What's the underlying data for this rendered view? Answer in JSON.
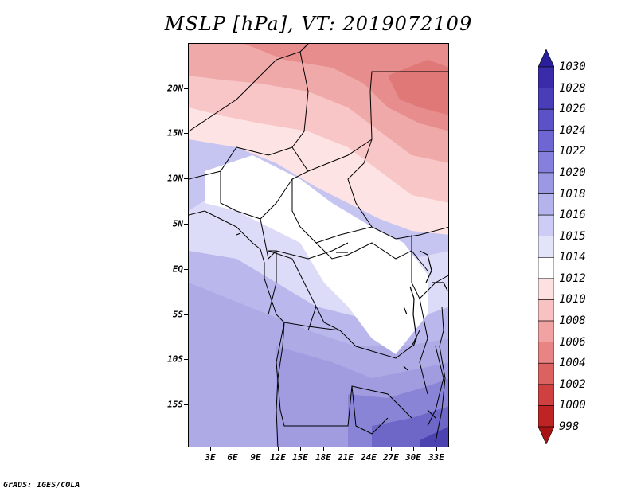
{
  "title": "MSLP [hPa], VT: 2019072109",
  "credit": "GrADS: IGES/COLA",
  "map": {
    "region": "Central Africa",
    "lat_range": [
      -19,
      25
    ],
    "lon_range": [
      0.5,
      35
    ],
    "y_ticks": [
      "20N",
      "15N",
      "10N",
      "5N",
      "EQ",
      "5S",
      "10S",
      "15S"
    ],
    "y_tick_values": [
      20,
      15,
      10,
      5,
      0,
      -5,
      -10,
      -15
    ],
    "x_ticks": [
      "3E",
      "6E",
      "9E",
      "12E",
      "15E",
      "18E",
      "21E",
      "24E",
      "27E",
      "30E",
      "33E"
    ],
    "x_tick_values": [
      3,
      6,
      9,
      12,
      15,
      18,
      21,
      24,
      27,
      30,
      33
    ]
  },
  "colorbar": {
    "labels": [
      "1030",
      "1028",
      "1026",
      "1024",
      "1022",
      "1020",
      "1018",
      "1016",
      "1015",
      "1014",
      "1012",
      "1010",
      "1008",
      "1006",
      "1004",
      "1002",
      "1000",
      "998"
    ],
    "colors": [
      "#2a1f9a",
      "#3a2ba8",
      "#4a3db8",
      "#5a52c6",
      "#6e66d2",
      "#8480dc",
      "#9c99e4",
      "#b5b3ec",
      "#ccccf4",
      "#e3e3fa",
      "#ffffff",
      "#fde0e0",
      "#f9c2c2",
      "#f1a3a3",
      "#e88484",
      "#dc6262",
      "#cf4040",
      "#bf2424",
      "#a81414"
    ]
  }
}
